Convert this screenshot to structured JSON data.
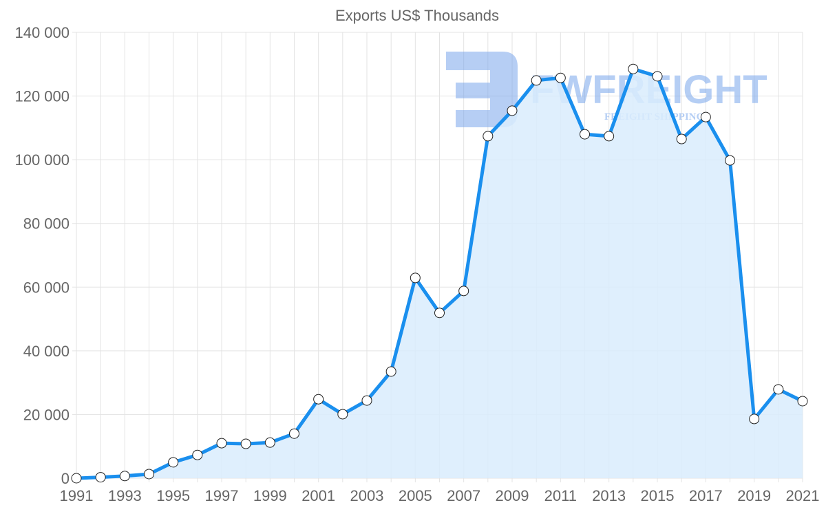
{
  "chart_data": {
    "type": "line",
    "title": "Exports US$ Thousands",
    "xlabel": "",
    "ylabel": "",
    "x": [
      1991,
      1992,
      1993,
      1994,
      1995,
      1996,
      1997,
      1998,
      1999,
      2000,
      2001,
      2002,
      2003,
      2004,
      2005,
      2006,
      2007,
      2008,
      2009,
      2010,
      2011,
      2012,
      2013,
      2014,
      2015,
      2016,
      2017,
      2018,
      2019,
      2020,
      2021
    ],
    "series": [
      {
        "name": "Exports US$ Thousands",
        "values": [
          0,
          300,
          700,
          1300,
          5000,
          7300,
          11000,
          10800,
          11200,
          14000,
          24800,
          20100,
          24400,
          33500,
          62900,
          51900,
          58800,
          107400,
          115400,
          124900,
          125700,
          108000,
          107400,
          128500,
          126200,
          106500,
          113400,
          99800,
          18600,
          27900,
          24200
        ]
      }
    ],
    "x_tick_labels": [
      "1991",
      "1993",
      "1995",
      "1997",
      "1999",
      "2001",
      "2003",
      "2005",
      "2007",
      "2009",
      "2011",
      "2013",
      "2015",
      "2017",
      "2019",
      "2021"
    ],
    "y_tick_labels": [
      "0",
      "20 000",
      "40 000",
      "60 000",
      "80 000",
      "100 000",
      "120 000",
      "140 000"
    ],
    "ylim": [
      0,
      140000
    ],
    "xlim": [
      1991,
      2021
    ],
    "grid": true,
    "filled_area": true,
    "legend": null,
    "colors": {
      "line": "#1a8fee",
      "fill": "#d9ecfd",
      "point_fill": "#ffffff",
      "point_stroke": "#222222"
    }
  },
  "watermark": {
    "brand": "FWFREIGHT",
    "tagline": "FREIGHT SHIPPING",
    "color": "#6d9eea"
  }
}
